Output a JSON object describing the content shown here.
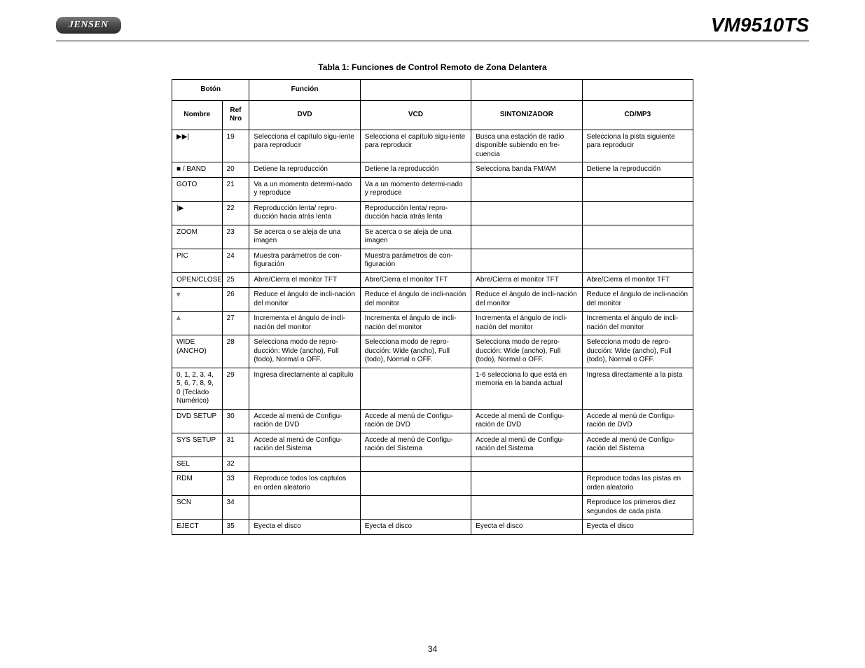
{
  "header": {
    "brand": "JENSEN",
    "model": "VM9510TS"
  },
  "table": {
    "caption": "Tabla 1: Funciones de Control Remoto de Zona Delantera",
    "top_headers": {
      "boton": "Botón",
      "funcion": "Función",
      "col3": "",
      "col4": "",
      "col5": ""
    },
    "sub_headers": {
      "nombre": "Nombre",
      "ref": "Ref Nro",
      "dvd": "DVD",
      "vcd": "VCD",
      "sint": "SINTONIZADOR",
      "cdmp3": "CD/MP3"
    },
    "rows": [
      {
        "name": "▶▶|",
        "ref": "19",
        "dvd": "Selecciona el capítulo sigu-iente para reproducir",
        "vcd": "Selecciona el capítulo sigu-iente para reproducir",
        "sint": "Busca una estación de radio disponible subiendo en fre-cuencia",
        "cd": "Selecciona la pista siguiente para reproducir"
      },
      {
        "name": "■ / BAND",
        "ref": "20",
        "dvd": "Detiene la reproducción",
        "vcd": "Detiene la reproducción",
        "sint": "Selecciona banda FM/AM",
        "cd": "Detiene la reproducción"
      },
      {
        "name": "GOTO",
        "ref": "21",
        "dvd": "Va a un momento determi-nado y reproduce",
        "vcd": "Va a un momento determi-nado y reproduce",
        "sint": "",
        "cd": ""
      },
      {
        "name": "|▶",
        "ref": "22",
        "dvd": "Reproducción lenta/ repro-ducción hacia atrás lenta",
        "vcd": "Reproducción lenta/ repro-ducción hacia atrás lenta",
        "sint": "",
        "cd": ""
      },
      {
        "name": "ZOOM",
        "ref": "23",
        "dvd": "Se acerca o se aleja de una imagen",
        "vcd": "Se acerca o se aleja de una imagen",
        "sint": "",
        "cd": ""
      },
      {
        "name": "PIC",
        "ref": "24",
        "dvd": "Muestra parámetros de con-figuración",
        "vcd": "Muestra parámetros de con-figuración",
        "sint": "",
        "cd": ""
      },
      {
        "name": "OPEN/CLOSE",
        "ref": "25",
        "dvd": "Abre/Cierra el monitor TFT",
        "vcd": "Abre/Cierra el monitor TFT",
        "sint": "Abre/Cierra el monitor TFT",
        "cd": "Abre/Cierra el monitor TFT"
      },
      {
        "name": "⩔",
        "ref": "26",
        "dvd": "Reduce el ángulo de incli-nación del monitor",
        "vcd": "Reduce el ángulo de incli-nación del monitor",
        "sint": "Reduce el ángulo de incli-nación del monitor",
        "cd": "Reduce el ángulo de incli-nación del monitor"
      },
      {
        "name": "⩓",
        "ref": "27",
        "dvd": "Incrementa el ángulo de incli-nación del monitor",
        "vcd": "Incrementa el ángulo de incli-nación del monitor",
        "sint": "Incrementa el ángulo de incli-nación del monitor",
        "cd": "Incrementa el ángulo de incli-nación del monitor"
      },
      {
        "name": "WIDE (ANCHO)",
        "ref": "28",
        "dvd": "Selecciona modo de repro-ducción: Wide (ancho), Full (todo), Normal o OFF.",
        "vcd": "Selecciona modo de repro-ducción: Wide (ancho), Full (todo), Normal o OFF.",
        "sint": "Selecciona modo de repro-ducción: Wide (ancho), Full (todo), Normal o OFF.",
        "cd": "Selecciona modo de repro-ducción: Wide (ancho), Full (todo), Normal o OFF."
      },
      {
        "name": "0, 1, 2, 3, 4, 5, 6, 7, 8, 9, 0 (Teclado Numérico)",
        "ref": "29",
        "dvd": "Ingresa directamente al capítulo",
        "vcd": "",
        "sint": "1-6 selecciona lo que está en memoria en la banda actual",
        "cd": "Ingresa directamente a la pista"
      },
      {
        "name": "DVD SETUP",
        "ref": "30",
        "dvd": "Accede al menú de Configu-ración de DVD",
        "vcd": "Accede al menú de Configu-ración de DVD",
        "sint": "Accede al menú de Configu-ración de DVD",
        "cd": "Accede al menú de Configu-ración de DVD"
      },
      {
        "name": "SYS SETUP",
        "ref": "31",
        "dvd": "Accede al menú de Configu-ración del Sistema",
        "vcd": "Accede al menú de Configu-ración del Sistema",
        "sint": "Accede al menú de Configu-ración del Sistema",
        "cd": "Accede al menú de Configu-ración del Sistema"
      },
      {
        "name": "SEL",
        "ref": "32",
        "dvd": "",
        "vcd": "",
        "sint": "",
        "cd": ""
      },
      {
        "name": "RDM",
        "ref": "33",
        "dvd": "Reproduce todos los captulos en orden aleatorio",
        "vcd": "",
        "sint": "",
        "cd": "Reproduce todas las pistas en orden aleatorio"
      },
      {
        "name": "SCN",
        "ref": "34",
        "dvd": "",
        "vcd": "",
        "sint": "",
        "cd": "Reproduce los primeros diez segundos de cada pista"
      },
      {
        "name": "EJECT",
        "ref": "35",
        "dvd": "Eyecta el disco",
        "vcd": "Eyecta el disco",
        "sint": "Eyecta el disco",
        "cd": "Eyecta el disco"
      }
    ]
  },
  "page_number": "34"
}
